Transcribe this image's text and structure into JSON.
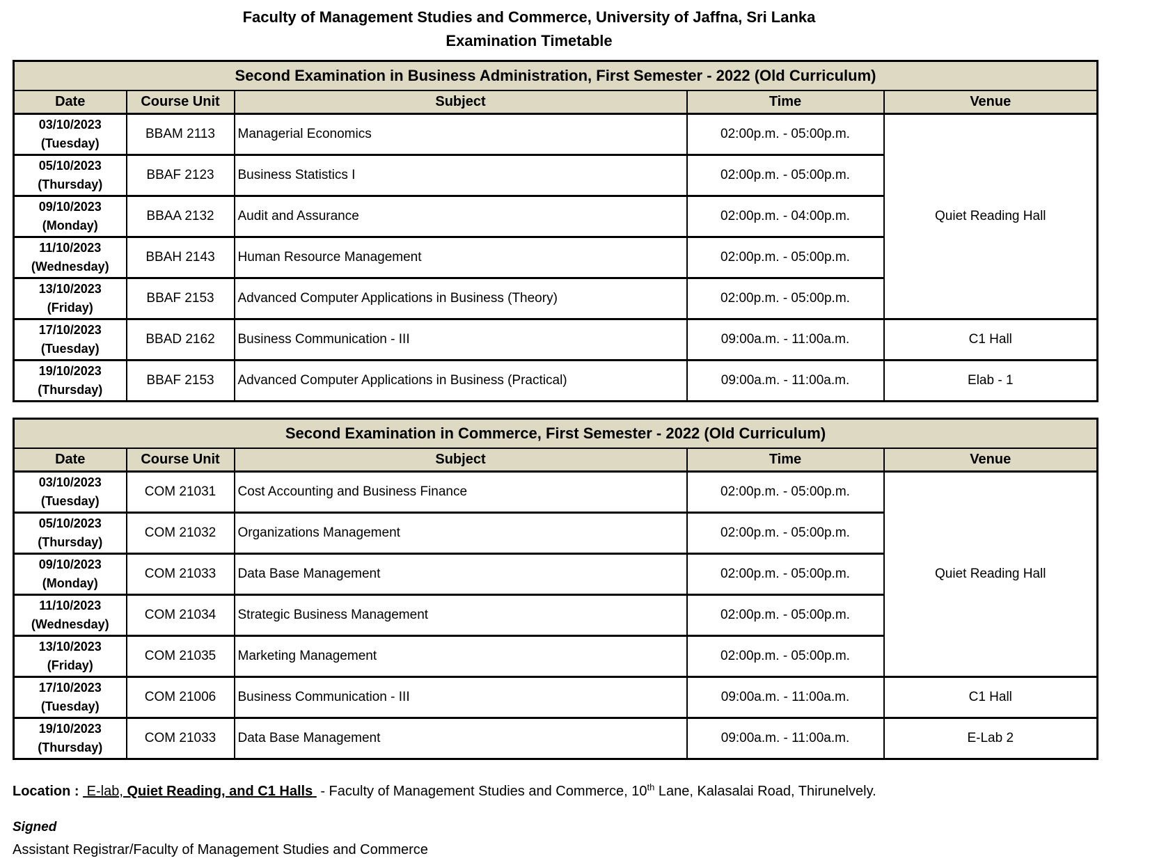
{
  "page": {
    "title_line1": "Faculty of Management Studies and Commerce, University of Jaffna, Sri Lanka",
    "title_line2": "Examination Timetable"
  },
  "colors": {
    "header_band": "#ddd9c3",
    "border": "#000000",
    "background": "#ffffff"
  },
  "columns": {
    "date": "Date",
    "course_unit": "Course Unit",
    "subject": "Subject",
    "time": "Time",
    "venue": "Venue"
  },
  "tables": [
    {
      "title": "Second Examination in Business Administration, First Semester - 2022 (Old Curriculum)",
      "venue_merged": "Quiet Reading Hall",
      "rows": [
        {
          "date": "03/10/2023",
          "day": "(Tuesday)",
          "course_unit": "BBAM 2113",
          "subject": "Managerial Economics",
          "time": "02:00p.m. - 05:00p.m."
        },
        {
          "date": "05/10/2023",
          "day": "(Thursday)",
          "course_unit": "BBAF 2123",
          "subject": "Business Statistics I",
          "time": "02:00p.m. - 05:00p.m."
        },
        {
          "date": "09/10/2023",
          "day": "(Monday)",
          "course_unit": "BBAA 2132",
          "subject": "Audit and Assurance",
          "time": "02:00p.m. - 04:00p.m."
        },
        {
          "date": "11/10/2023",
          "day": "(Wednesday)",
          "course_unit": "BBAH 2143",
          "subject": "Human Resource Management",
          "time": "02:00p.m. - 05:00p.m."
        },
        {
          "date": "13/10/2023",
          "day": "(Friday)",
          "course_unit": "BBAF 2153",
          "subject": "Advanced Computer Applications in Business (Theory)",
          "time": "02:00p.m. - 05:00p.m."
        },
        {
          "date": "17/10/2023",
          "day": "(Tuesday)",
          "course_unit": "BBAD 2162",
          "subject": "Business Communication - III",
          "time": "09:00a.m. - 11:00a.m.",
          "venue": "C1 Hall"
        },
        {
          "date": "19/10/2023",
          "day": "(Thursday)",
          "course_unit": "BBAF 2153",
          "subject": "Advanced Computer Applications in Business (Practical)",
          "time": "09:00a.m. - 11:00a.m.",
          "venue": "Elab - 1"
        }
      ]
    },
    {
      "title": "Second Examination in  Commerce, First Semester - 2022 (Old Curriculum)",
      "venue_merged": "Quiet Reading Hall",
      "rows": [
        {
          "date": "03/10/2023",
          "day": "(Tuesday)",
          "course_unit": "COM 21031",
          "subject": "Cost Accounting and Business Finance",
          "time": "02:00p.m. - 05:00p.m."
        },
        {
          "date": "05/10/2023",
          "day": "(Thursday)",
          "course_unit": "COM 21032",
          "subject": "Organizations Management",
          "time": "02:00p.m. - 05:00p.m."
        },
        {
          "date": "09/10/2023",
          "day": "(Monday)",
          "course_unit": "COM 21033",
          "subject": "Data Base Management",
          "time": "02:00p.m. - 05:00p.m."
        },
        {
          "date": "11/10/2023",
          "day": "(Wednesday)",
          "course_unit": "COM 21034",
          "subject": "Strategic Business Management",
          "time": "02:00p.m. - 05:00p.m."
        },
        {
          "date": "13/10/2023",
          "day": "(Friday)",
          "course_unit": "COM 21035",
          "subject": "Marketing Management",
          "time": "02:00p.m. - 05:00p.m."
        },
        {
          "date": "17/10/2023",
          "day": "(Tuesday)",
          "course_unit": "COM 21006",
          "subject": "Business Communication - III",
          "time": "09:00a.m. - 11:00a.m.",
          "venue": "C1 Hall"
        },
        {
          "date": "19/10/2023",
          "day": "(Thursday)",
          "course_unit": "COM 21033",
          "subject": "Data Base Management",
          "time": "09:00a.m. - 11:00a.m.",
          "venue": "E-Lab 2"
        }
      ]
    }
  ],
  "footer": {
    "location_label": "Location :",
    "location_halls_regular": "E-lab,",
    "location_halls_bold": "Quiet Reading, and C1 Halls",
    "location_rest_before_sup": "- Faculty of Management Studies and Commerce, 10",
    "location_sup": "th",
    "location_rest_after_sup": "Lane, Kalasalai Road, Thirunelvely.",
    "signed": "Signed",
    "registrar": "Assistant Registrar/Faculty of Management Studies and Commerce"
  }
}
